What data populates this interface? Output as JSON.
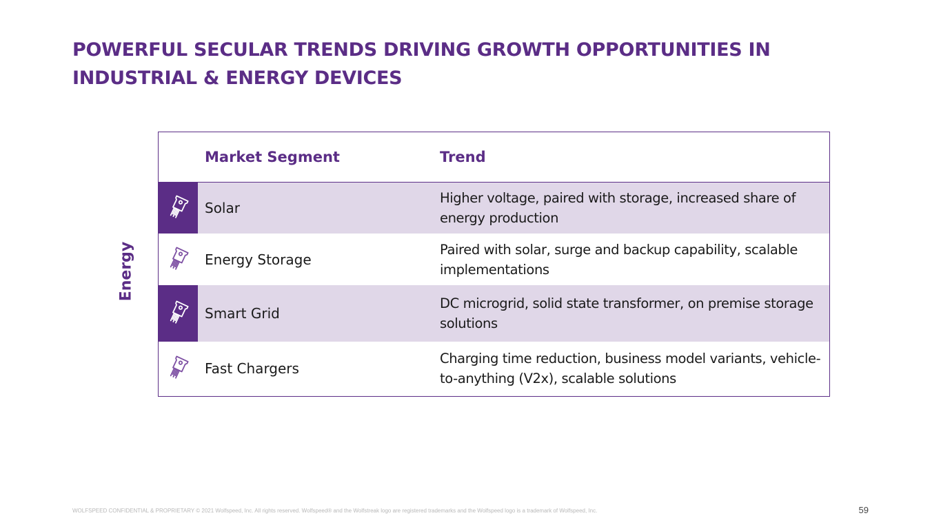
{
  "slide": {
    "title": "POWERFUL SECULAR TRENDS DRIVING GROWTH OPPORTUNITIES IN INDUSTRIAL & ENERGY DEVICES",
    "side_label": "Energy",
    "footer": "WOLFSPEED CONFIDENTIAL & PROPRIETARY © 2021 Wolfspeed, Inc. All rights reserved. Wolfspeed® and the Wolfstreak logo are registered trademarks and the Wolfspeed logo is a trademark of Wolfspeed, Inc.",
    "page_number": "59"
  },
  "table": {
    "headers": {
      "segment": "Market Segment",
      "trend": "Trend"
    },
    "rows": [
      {
        "segment": "Solar",
        "trend": "Higher voltage, paired with storage, increased share of energy production",
        "icon": "power-device-icon"
      },
      {
        "segment": "Energy Storage",
        "trend": "Paired with solar, surge and backup capability, scalable implementations",
        "icon": "power-device-icon"
      },
      {
        "segment": "Smart Grid",
        "trend": "DC microgrid, solid state transformer, on premise storage solutions",
        "icon": "power-device-icon"
      },
      {
        "segment": "Fast Chargers",
        "trend": "Charging time reduction, business model variants, vehicle-to-anything (V2x), scalable solutions",
        "icon": "power-device-icon"
      }
    ]
  },
  "colors": {
    "brand_purple": "#5b2d86",
    "row_shade": "#e0d7e8"
  }
}
